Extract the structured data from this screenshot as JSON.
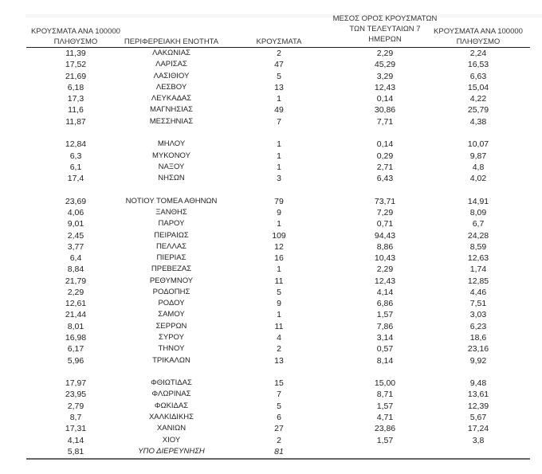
{
  "headers": {
    "col1": [
      "ΚΡΟΥΣΜΑΤΑ ΑΝΑ 100000",
      "ΠΛΗΘΥΣΜΟ"
    ],
    "col2": "ΠΕΡΙΦΕΡΕΙΑΚΗ ΕΝΟΤΗΤΑ",
    "col3": "ΚΡΟΥΣΜΑΤΑ",
    "col4": [
      "ΜΕΣΟΣ ΟΡΟΣ ΚΡΟΥΣΜΑΤΩΝ",
      "ΤΩΝ ΤΕΛΕΥΤΑΙΩΝ 7",
      "ΗΜΕΡΩΝ"
    ],
    "col5": [
      "ΚΡΟΥΣΜΑΤΑ ΑΝΑ 100000",
      "ΠΛΗΘΥΣΜΟ"
    ]
  },
  "rows": [
    [
      "11,39",
      "ΛΑΚΩΝΙΑΣ",
      "2",
      "2,29",
      "2,24"
    ],
    [
      "17,52",
      "ΛΑΡΙΣΑΣ",
      "47",
      "45,29",
      "16,53"
    ],
    [
      "21,69",
      "ΛΑΣΙΘΙΟΥ",
      "5",
      "3,29",
      "6,63"
    ],
    [
      "6,18",
      "ΛΕΣΒΟΥ",
      "13",
      "12,43",
      "15,04"
    ],
    [
      "17,3",
      "ΛΕΥΚΑΔΑΣ",
      "1",
      "0,14",
      "4,22"
    ],
    [
      "11,6",
      "ΜΑΓΝΗΣΙΑΣ",
      "49",
      "30,86",
      "25,79"
    ],
    [
      "11,87",
      "ΜΕΣΣΗΝΙΑΣ",
      "7",
      "7,71",
      "4,38"
    ],
    null,
    [
      "12,84",
      "ΜΗΛΟΥ",
      "1",
      "0,14",
      "10,07"
    ],
    [
      "6,3",
      "ΜΥΚΟΝΟΥ",
      "1",
      "0,29",
      "9,87"
    ],
    [
      "6,1",
      "ΝΑΞΟΥ",
      "1",
      "2,71",
      "4,8"
    ],
    [
      "17,4",
      "ΝΗΣΩΝ",
      "3",
      "6,43",
      "4,02"
    ],
    null,
    [
      "23,69",
      "ΝΟΤΙΟΥ ΤΟΜΕΑ ΑΘΗΝΩΝ",
      "79",
      "73,71",
      "14,91"
    ],
    [
      "4,06",
      "ΞΑΝΘΗΣ",
      "9",
      "7,29",
      "8,09"
    ],
    [
      "9,01",
      "ΠΑΡΟΥ",
      "1",
      "0,71",
      "6,7"
    ],
    [
      "2,45",
      "ΠΕΙΡΑΙΩΣ",
      "109",
      "94,43",
      "24,28"
    ],
    [
      "3,77",
      "ΠΕΛΛΑΣ",
      "12",
      "8,86",
      "8,59"
    ],
    [
      "6,4",
      "ΠΙΕΡΙΑΣ",
      "16",
      "10,43",
      "12,63"
    ],
    [
      "8,84",
      "ΠΡΕΒΕΖΑΣ",
      "1",
      "2,29",
      "1,74"
    ],
    [
      "21,79",
      "ΡΕΘΥΜΝΟΥ",
      "11",
      "12,43",
      "12,85"
    ],
    [
      "2,29",
      "ΡΟΔΟΠΗΣ",
      "5",
      "4,14",
      "4,46"
    ],
    [
      "12,61",
      "ΡΟΔΟΥ",
      "9",
      "6,86",
      "7,51"
    ],
    [
      "21,44",
      "ΣΑΜΟΥ",
      "1",
      "1,57",
      "3,03"
    ],
    [
      "8,01",
      "ΣΕΡΡΩΝ",
      "11",
      "7,86",
      "6,23"
    ],
    [
      "16,98",
      "ΣΥΡΟΥ",
      "4",
      "3,14",
      "18,6"
    ],
    [
      "6,17",
      "ΤΗΝΟΥ",
      "2",
      "0,57",
      "23,16"
    ],
    [
      "5,96",
      "ΤΡΙΚΑΛΩΝ",
      "13",
      "8,14",
      "9,92"
    ],
    null,
    [
      "17,97",
      "ΦΘΙΩΤΙΔΑΣ",
      "15",
      "15,00",
      "9,48"
    ],
    [
      "23,95",
      "ΦΛΩΡΙΝΑΣ",
      "7",
      "8,71",
      "13,61"
    ],
    [
      "2,79",
      "ΦΩΚΙΔΑΣ",
      "5",
      "1,57",
      "12,39"
    ],
    [
      "8,7",
      "ΧΑΛΚΙΔΙΚΗΣ",
      "6",
      "4,71",
      "5,67"
    ],
    [
      "17,31",
      "ΧΑΝΙΩΝ",
      "27",
      "23,86",
      "17,24"
    ],
    [
      "4,14",
      "ΧΙΟΥ",
      "2",
      "1,57",
      "3,8"
    ],
    [
      "5,81",
      "ΥΠΟ ΔΙΕΡΕΥΝΗΣΗ",
      "81",
      "",
      ""
    ]
  ]
}
